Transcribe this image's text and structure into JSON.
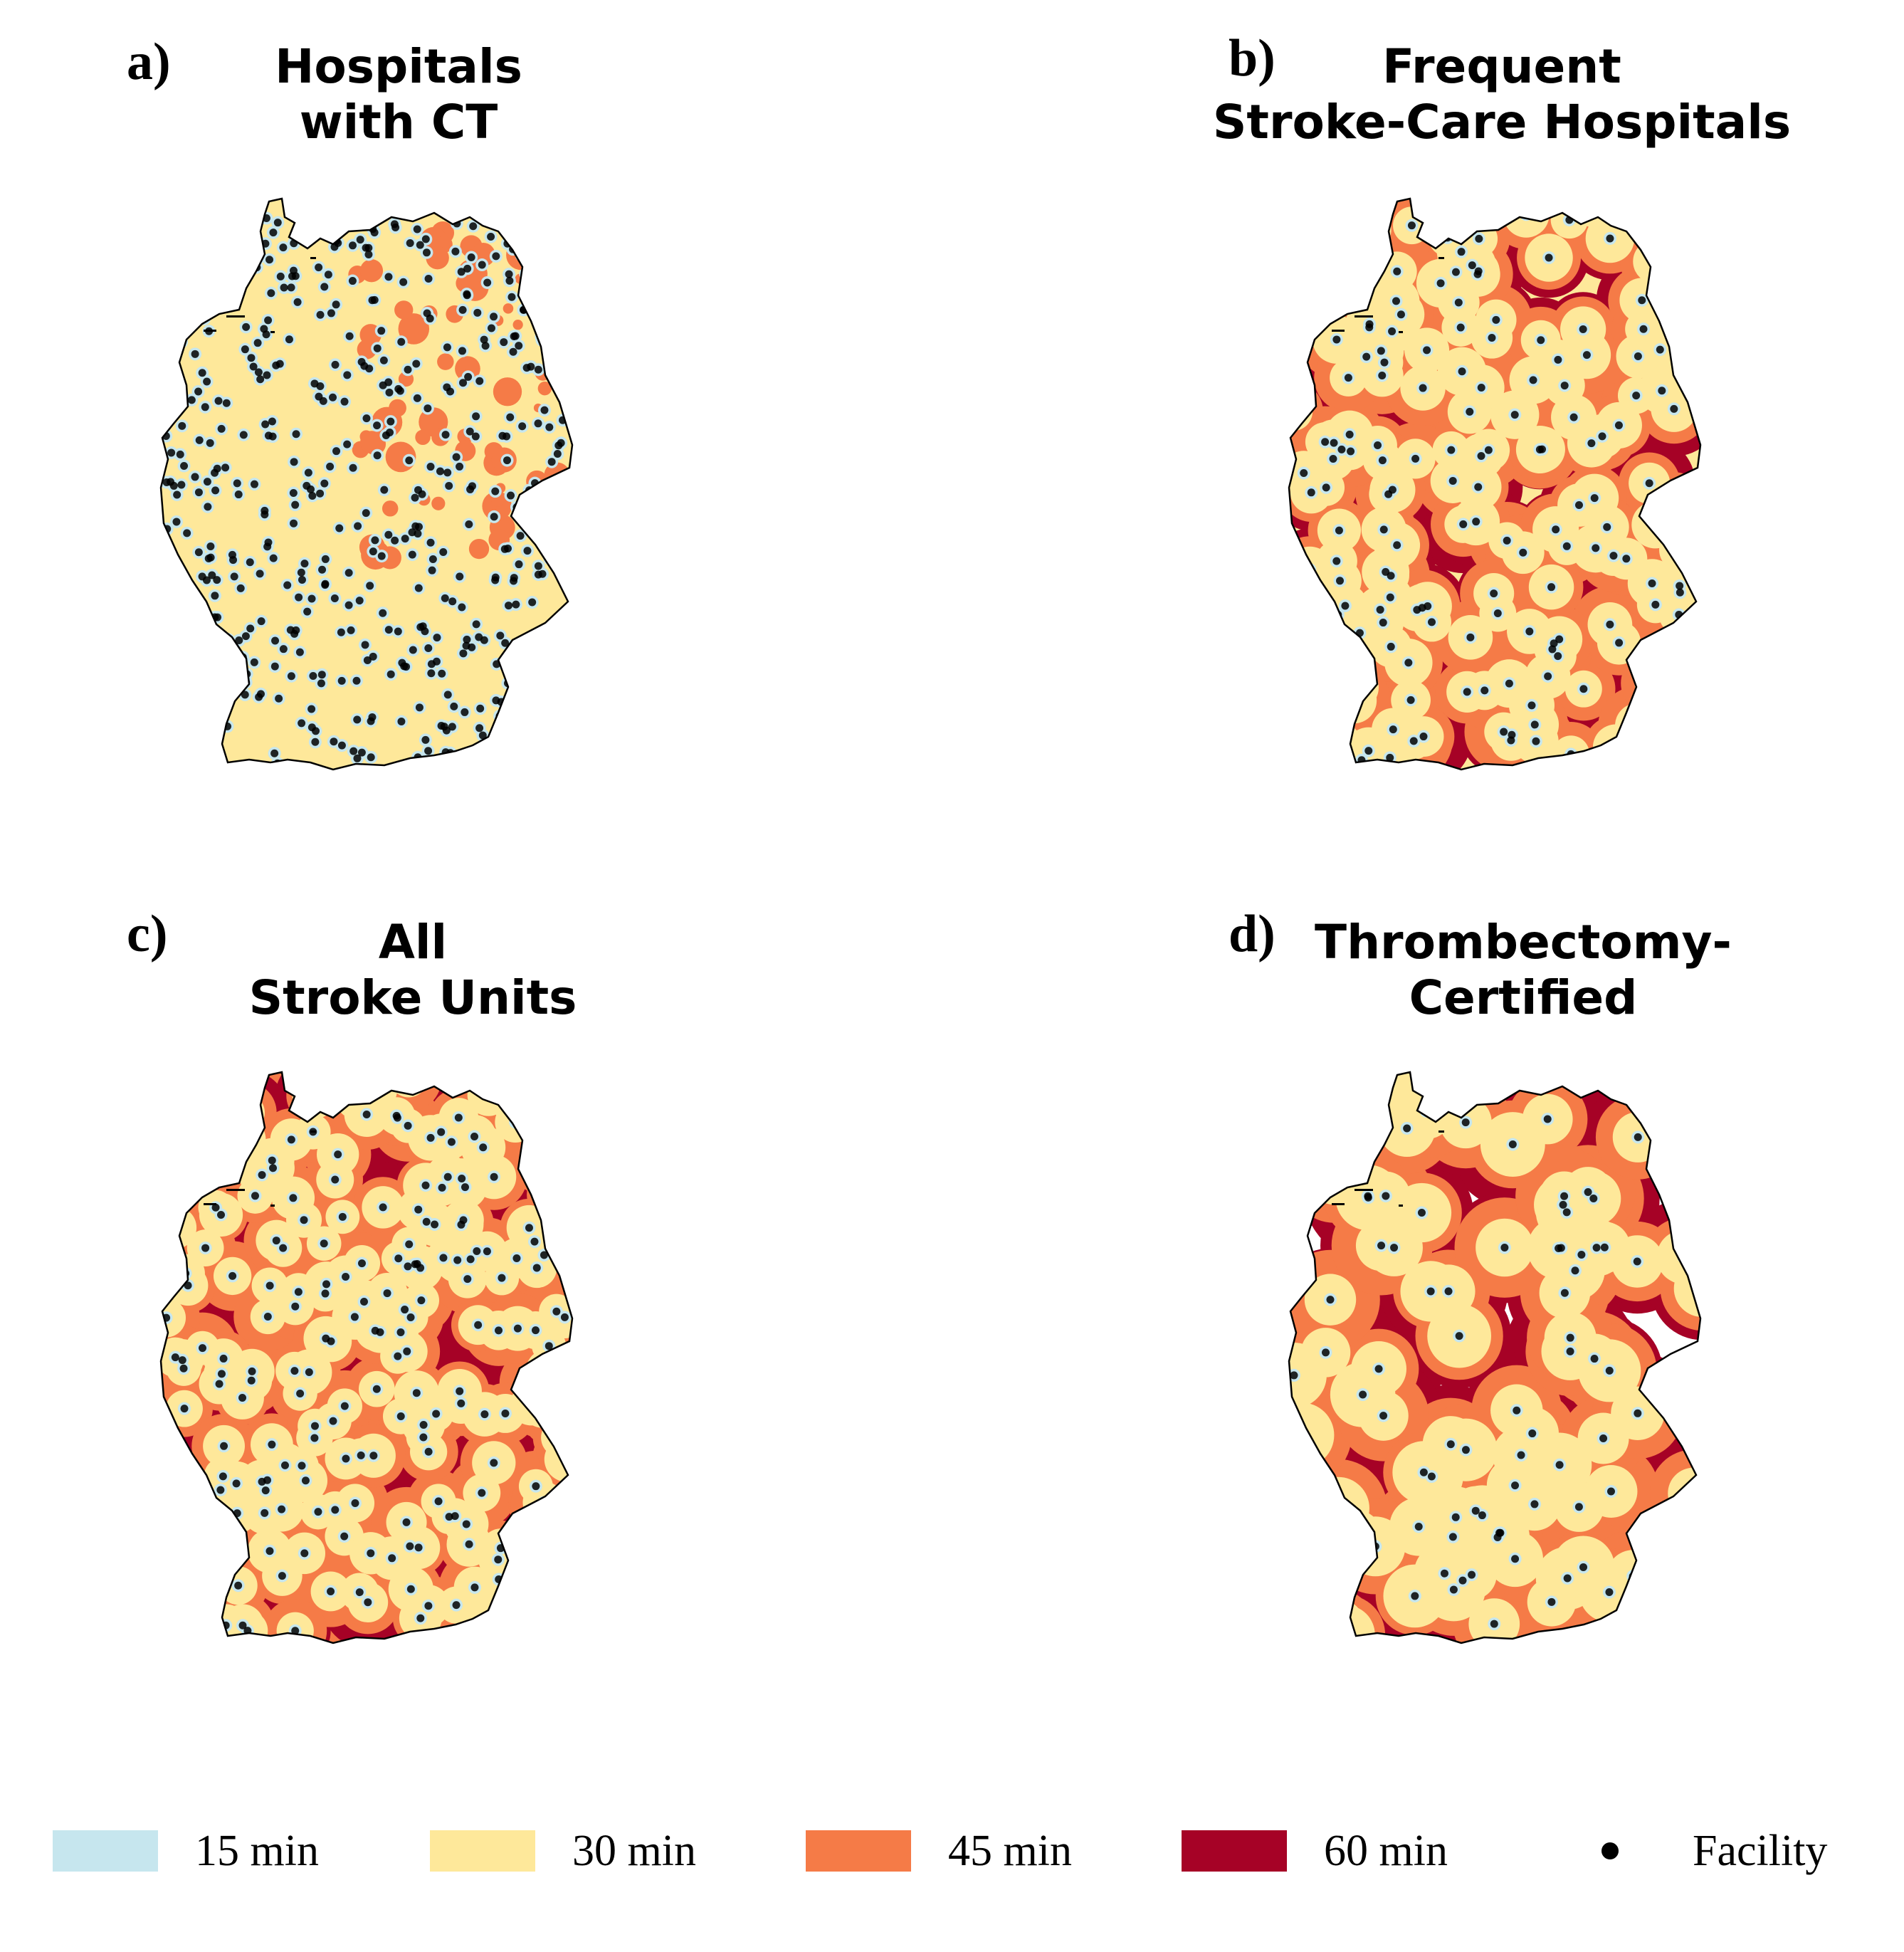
{
  "panels": [
    {
      "letter": "a)",
      "title": "Hospitals\nwith CT",
      "level": 0
    },
    {
      "letter": "b)",
      "title": "Frequent\nStroke-Care Hospitals",
      "level": 1
    },
    {
      "letter": "c)",
      "title": "All\nStroke Units",
      "level": 2
    },
    {
      "letter": "d)",
      "title": "Thrombectomy-\nCertified",
      "level": 3
    }
  ],
  "legend": {
    "items": [
      {
        "label": "15 min",
        "color": "#c6e6ee"
      },
      {
        "label": "30 min",
        "color": "#fee89a"
      },
      {
        "label": "45 min",
        "color": "#f57b47"
      },
      {
        "label": "60 min",
        "color": "#a60226"
      }
    ],
    "facility_label": "Facility"
  }
}
